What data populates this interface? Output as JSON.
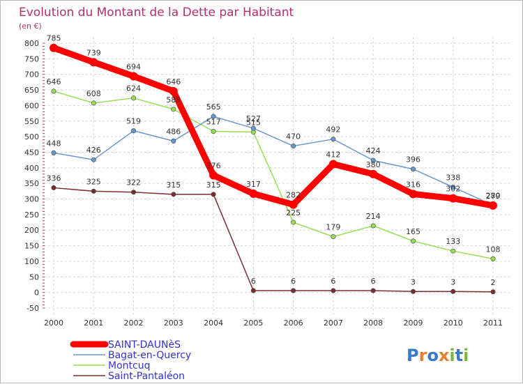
{
  "chart_data": {
    "type": "line",
    "title": "Evolution du Montant de la Dette par Habitant",
    "unit_label": "(en €)",
    "x": [
      "2000",
      "2001",
      "2002",
      "2003",
      "2004",
      "2005",
      "2006",
      "2007",
      "2008",
      "2009",
      "2010",
      "2011"
    ],
    "ylim": [
      -50,
      800
    ],
    "yticks": [
      -50,
      0,
      50,
      100,
      150,
      200,
      250,
      300,
      350,
      400,
      450,
      500,
      550,
      600,
      650,
      700,
      750,
      800
    ],
    "grid": true,
    "legend_position": "bottom-left",
    "series": [
      {
        "name": "SAINT-DAUNèS",
        "color": "#ff0000",
        "values": [
          785,
          739,
          694,
          646,
          376,
          317,
          282,
          412,
          380,
          316,
          302,
          279
        ]
      },
      {
        "name": "Bagat-en-Quercy",
        "color": "#6699cc",
        "values": [
          448,
          426,
          519,
          486,
          565,
          527,
          470,
          492,
          424,
          396,
          338,
          280
        ]
      },
      {
        "name": "Montcuq",
        "color": "#99dd55",
        "values": [
          646,
          608,
          624,
          588,
          517,
          515,
          225,
          179,
          214,
          165,
          133,
          108
        ]
      },
      {
        "name": "Saint-Pantaléon",
        "color": "#7a2f2f",
        "values": [
          336,
          325,
          322,
          315,
          315,
          6,
          6,
          6,
          6,
          3,
          3,
          2
        ]
      }
    ]
  },
  "brand": {
    "letters": [
      "P",
      "r",
      "o",
      "x",
      "i",
      "t",
      "i"
    ],
    "colors": [
      "#3a78c8",
      "#e8802a",
      "#3a78c8",
      "#e8802a",
      "#7ab83a",
      "#3a78c8",
      "#7ab83a"
    ]
  }
}
